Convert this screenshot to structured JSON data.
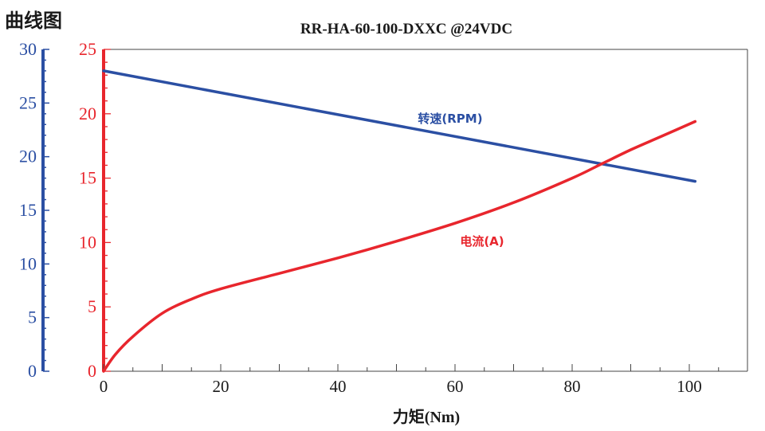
{
  "page_label": "曲线图",
  "chart_data": {
    "type": "line",
    "title": "RR-HA-60-100-DXXC @24VDC",
    "xlabel": "力矩(Nm)",
    "xlim": [
      0,
      110
    ],
    "x_ticks": [
      "0",
      "20",
      "40",
      "60",
      "80",
      "100"
    ],
    "y_left_outer": {
      "range": [
        0,
        30
      ],
      "ticks": [
        "0",
        "5",
        "10",
        "15",
        "20",
        "25",
        "30"
      ],
      "color": "#2b4fa3"
    },
    "y_left_inner": {
      "range": [
        0,
        25
      ],
      "ticks": [
        "0",
        "5",
        "10",
        "15",
        "20",
        "25"
      ],
      "color": "#e8262d"
    },
    "grid": false,
    "series": [
      {
        "name": "转速(RPM)",
        "axis": "y_left_outer",
        "color": "#2b4fa3",
        "x": [
          0,
          101
        ],
        "y": [
          28.0,
          17.7
        ]
      },
      {
        "name": "电流(A)",
        "axis": "y_left_inner",
        "color": "#e8262d",
        "x": [
          0,
          2,
          5,
          10,
          15,
          20,
          30,
          40,
          50,
          60,
          70,
          80,
          85,
          90,
          95,
          101
        ],
        "y": [
          0,
          1.3,
          2.7,
          4.5,
          5.6,
          6.4,
          7.6,
          8.8,
          10.1,
          11.5,
          13.1,
          15.0,
          16.1,
          17.2,
          18.2,
          19.4
        ]
      }
    ]
  }
}
